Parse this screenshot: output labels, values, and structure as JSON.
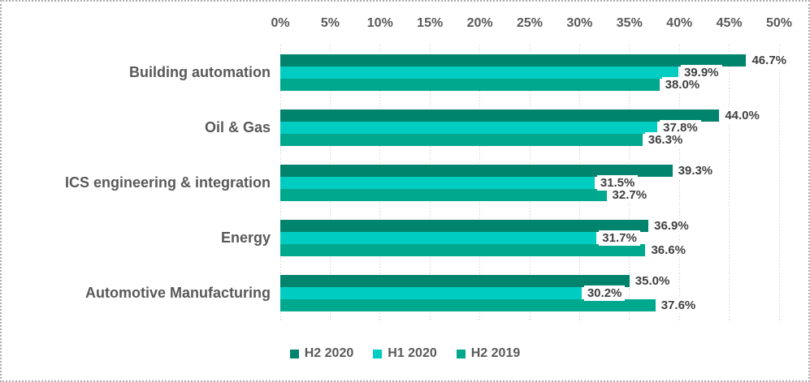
{
  "chart_data": {
    "type": "bar",
    "orientation": "horizontal",
    "title": "",
    "categories": [
      "Building automation",
      "Oil & Gas",
      "ICS engineering & integration",
      "Energy",
      "Automotive Manufacturing"
    ],
    "series": [
      {
        "name": "H2 2020",
        "color": "#00846D",
        "values": [
          46.7,
          44.0,
          39.3,
          36.9,
          35.0
        ],
        "labels": [
          "46.7%",
          "44.0%",
          "39.3%",
          "36.9%",
          "35.0%"
        ]
      },
      {
        "name": "H1 2020",
        "color": "#00CCC1",
        "values": [
          39.9,
          37.8,
          31.5,
          31.7,
          30.2
        ],
        "labels": [
          "39.9%",
          "37.8%",
          "31.5%",
          "31.7%",
          "30.2%"
        ]
      },
      {
        "name": "H2 2019",
        "color": "#00A98E",
        "values": [
          38.0,
          36.3,
          32.7,
          36.6,
          37.6
        ],
        "labels": [
          "38.0%",
          "36.3%",
          "32.7%",
          "36.6%",
          "37.6%"
        ]
      }
    ],
    "x_axis": {
      "min": 0,
      "max": 50,
      "step": 5,
      "position": "top",
      "tick_labels": [
        "0%",
        "5%",
        "10%",
        "15%",
        "20%",
        "25%",
        "30%",
        "35%",
        "40%",
        "45%",
        "50%"
      ]
    },
    "legend": {
      "position": "bottom",
      "entries": [
        "H2 2020",
        "H1 2020",
        "H2 2019"
      ]
    },
    "grid": true,
    "xlabel": "",
    "ylabel": ""
  },
  "style": {
    "text_color": "#595959",
    "data_label_color": "#404040",
    "gridline_color": "#d4d4d4",
    "frame_border_color": "#ababab",
    "background": "#ffffff"
  }
}
